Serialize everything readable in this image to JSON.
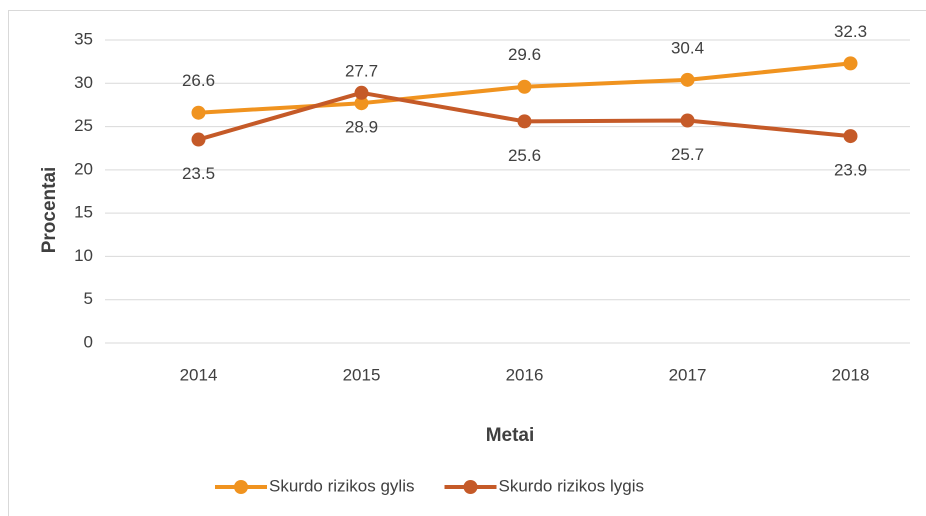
{
  "chart_data": {
    "type": "line",
    "categories": [
      "2014",
      "2015",
      "2016",
      "2017",
      "2018"
    ],
    "series": [
      {
        "name": "Skurdo rizikos gylis",
        "color": "#f0931f",
        "values": [
          26.6,
          27.7,
          29.6,
          30.4,
          32.3
        ]
      },
      {
        "name": "Skurdo rizikos lygis",
        "color": "#c55a28",
        "values": [
          23.5,
          28.9,
          25.6,
          25.7,
          23.9
        ]
      }
    ],
    "x_label": "Metai",
    "y_label": "Procentai",
    "ylim": [
      0,
      35
    ],
    "yticks": [
      0,
      5,
      10,
      15,
      20,
      25,
      30,
      35
    ],
    "grid": true,
    "legend": "bottom"
  }
}
